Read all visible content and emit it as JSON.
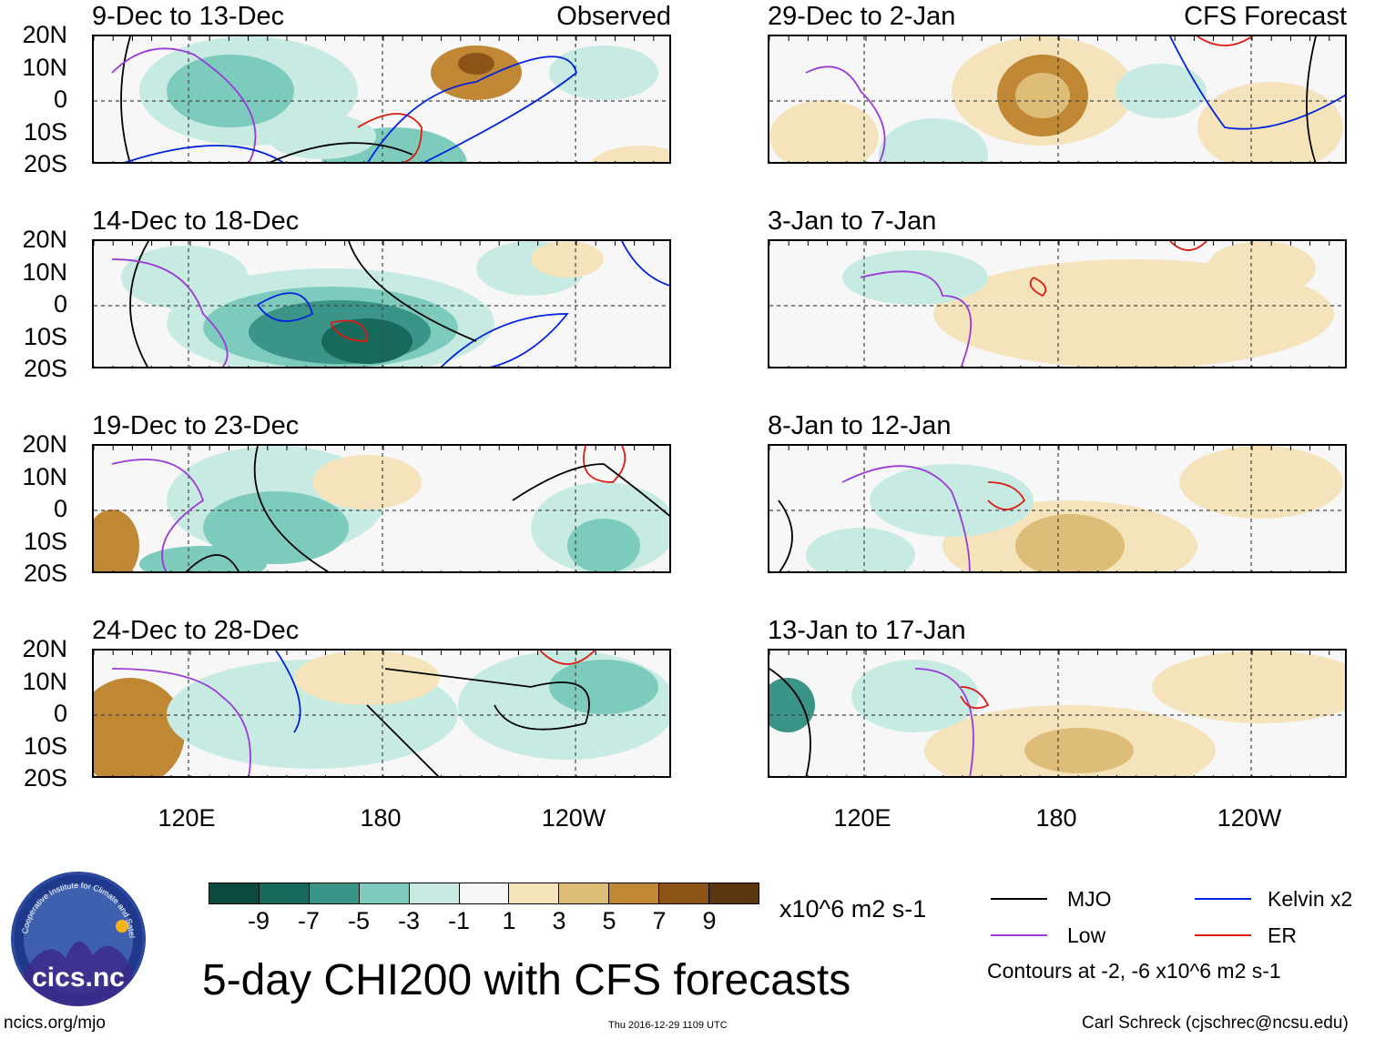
{
  "chart_data": {
    "type": "heatmap",
    "title": "5-day CHI200 with CFS forecasts",
    "variable": "CHI200",
    "units": "x10^6 m2 s-1",
    "lat_ticks": [
      "20N",
      "10N",
      "0",
      "10S",
      "20S"
    ],
    "lon_ticks": [
      "120E",
      "180",
      "120W"
    ],
    "color_scale": {
      "labels": [
        "-9",
        "-7",
        "-5",
        "-3",
        "-1",
        "1",
        "3",
        "5",
        "7",
        "9"
      ],
      "colors": [
        "#0c4a40",
        "#17695c",
        "#3a9488",
        "#7ccbbd",
        "#c7ebe3",
        "#f7f7f7",
        "#f4e3bb",
        "#ddbd78",
        "#c08835",
        "#8d5317",
        "#5a3510"
      ]
    },
    "contour_note": "Contours at -2, -6 x10^6 m2 s-1",
    "legend": [
      {
        "label": "MJO",
        "color": "#000000"
      },
      {
        "label": "Kelvin x2",
        "color": "#0022dd"
      },
      {
        "label": "Low",
        "color": "#9a3ad8"
      },
      {
        "label": "ER",
        "color": "#dd1a10"
      }
    ],
    "panels": [
      {
        "period": "9-Dec to 13-Dec",
        "tag": "Observed"
      },
      {
        "period": "29-Dec to 2-Jan",
        "tag": "CFS Forecast"
      },
      {
        "period": "14-Dec to 18-Dec",
        "tag": ""
      },
      {
        "period": "3-Jan to 7-Jan",
        "tag": ""
      },
      {
        "period": "19-Dec to 23-Dec",
        "tag": ""
      },
      {
        "period": "8-Jan to 12-Jan",
        "tag": ""
      },
      {
        "period": "24-Dec to 28-Dec",
        "tag": ""
      },
      {
        "period": "13-Jan to 17-Jan",
        "tag": ""
      }
    ]
  },
  "logo": {
    "text": "cics.nc",
    "arc_text": "Cooperative Institute for Climate and Satellites"
  },
  "footer": {
    "left": "ncics.org/mjo",
    "center": "Thu 2016-12-29 1109 UTC",
    "right": "Carl Schreck (cjschrec@ncsu.edu)"
  }
}
